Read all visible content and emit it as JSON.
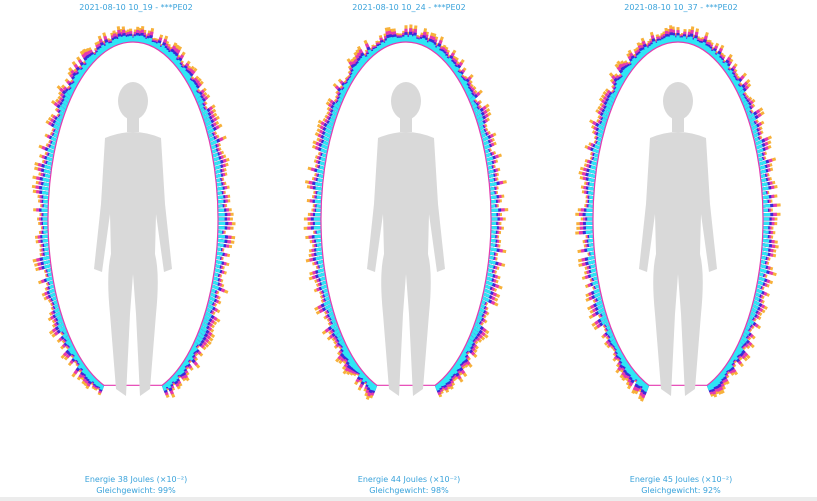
{
  "panels": [
    {
      "title": "2021-08-10 10_19 - ***PE02",
      "energy": "Energie 38 Joules (×10⁻²)",
      "balance": "Gleichgewicht: 99%"
    },
    {
      "title": "2021-08-10 10_24 - ***PE02",
      "energy": "Energie 44 Joules (×10⁻²)",
      "balance": "Gleichgewicht: 98%"
    },
    {
      "title": "2021-08-10 10_37 - ***PE02",
      "energy": "Energie 45 Joules (×10⁻²)",
      "balance": "Gleichgewicht: 92%"
    }
  ],
  "colors": {
    "text": "#3aa3db",
    "aura_inner": "#2ee6f5",
    "aura_mid": "#3a2bd8",
    "aura_outer": "#e43ab0",
    "aura_edge": "#f7b13a",
    "silhouette": "#d9d9d9"
  }
}
